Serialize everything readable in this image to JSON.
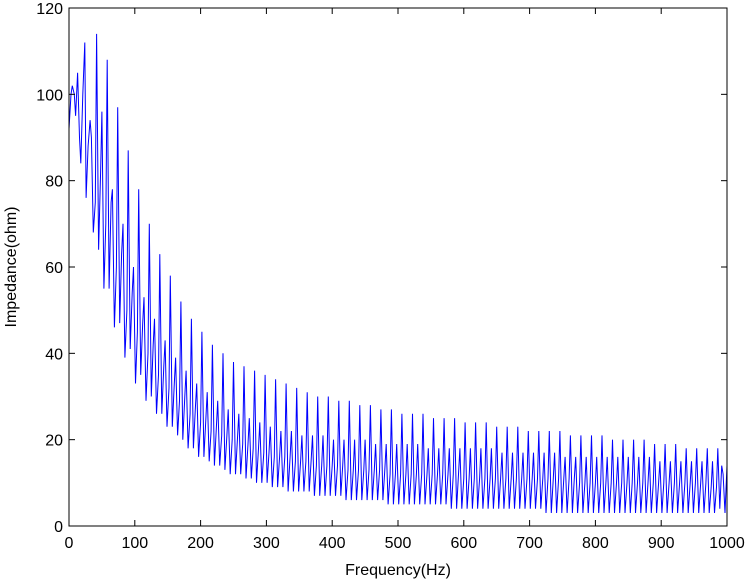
{
  "chart_data": {
    "type": "line",
    "title": "",
    "xlabel": "Frequency(Hz)",
    "ylabel": "Impedance(ohm)",
    "xlim": [
      0,
      1000
    ],
    "ylim": [
      0,
      120
    ],
    "xticks": [
      0,
      100,
      200,
      300,
      400,
      500,
      600,
      700,
      800,
      900,
      1000
    ],
    "yticks": [
      0,
      20,
      40,
      60,
      80,
      100,
      120
    ],
    "grid": false,
    "legend": "none",
    "line_color": "#0000ff",
    "series": [
      {
        "x": [
          0,
          3,
          5,
          8,
          10,
          13,
          16,
          18,
          21,
          24,
          26,
          29,
          32,
          34,
          37,
          40,
          42,
          45,
          48,
          50,
          53,
          56,
          58,
          61,
          64,
          66,
          69,
          72,
          74,
          77,
          80,
          82,
          85,
          88,
          90,
          93,
          96,
          98,
          101,
          104,
          106,
          109,
          112,
          114,
          117,
          120,
          122,
          125,
          128,
          130,
          133,
          136,
          138,
          141,
          144,
          146,
          149,
          152,
          154,
          157,
          160,
          162,
          165,
          168,
          170,
          173,
          176,
          178,
          181,
          184,
          186,
          189,
          192,
          194,
          197,
          200,
          202,
          205,
          208,
          210,
          213,
          216,
          218,
          221,
          224,
          226,
          229,
          232,
          234,
          237,
          240,
          242,
          245,
          248,
          250,
          253,
          256,
          258,
          261,
          264,
          266,
          269,
          272,
          274,
          277,
          280,
          282,
          285,
          288,
          290,
          293,
          296,
          298,
          301,
          304,
          306,
          309,
          312,
          314,
          317,
          320,
          322,
          325,
          328,
          330,
          333,
          336,
          338,
          341,
          344,
          346,
          349,
          352,
          354,
          357,
          360,
          362,
          365,
          368,
          370,
          373,
          376,
          378,
          381,
          384,
          386,
          389,
          392,
          394,
          397,
          400,
          402,
          405,
          408,
          410,
          413,
          416,
          418,
          421,
          424,
          426,
          429,
          432,
          434,
          437,
          440,
          442,
          445,
          448,
          450,
          453,
          456,
          458,
          461,
          464,
          466,
          469,
          472,
          474,
          477,
          480,
          482,
          485,
          488,
          490,
          493,
          496,
          498,
          501,
          504,
          506,
          509,
          512,
          514,
          517,
          520,
          522,
          525,
          528,
          530,
          533,
          536,
          538,
          541,
          544,
          546,
          549,
          552,
          554,
          557,
          560,
          562,
          565,
          568,
          570,
          573,
          576,
          578,
          581,
          584,
          586,
          589,
          592,
          594,
          597,
          600,
          602,
          605,
          608,
          610,
          613,
          616,
          618,
          621,
          624,
          626,
          629,
          632,
          634,
          637,
          640,
          642,
          645,
          648,
          650,
          653,
          656,
          658,
          661,
          664,
          666,
          669,
          672,
          674,
          677,
          680,
          682,
          685,
          688,
          690,
          693,
          696,
          698,
          701,
          704,
          706,
          709,
          712,
          714,
          717,
          720,
          722,
          725,
          728,
          730,
          733,
          736,
          738,
          741,
          744,
          746,
          749,
          752,
          754,
          757,
          760,
          762,
          765,
          768,
          770,
          773,
          776,
          778,
          781,
          784,
          786,
          789,
          792,
          794,
          797,
          800,
          802,
          805,
          808,
          810,
          813,
          816,
          818,
          821,
          824,
          826,
          829,
          832,
          834,
          837,
          840,
          842,
          845,
          848,
          850,
          853,
          856,
          858,
          861,
          864,
          866,
          869,
          872,
          874,
          877,
          880,
          882,
          885,
          888,
          890,
          893,
          896,
          898,
          901,
          904,
          906,
          909,
          912,
          914,
          917,
          920,
          922,
          925,
          928,
          930,
          933,
          936,
          938,
          941,
          944,
          946,
          949,
          952,
          954,
          957,
          960,
          962,
          965,
          968,
          970,
          973,
          976,
          978,
          981,
          984,
          986,
          989,
          992,
          994,
          997,
          1000
        ],
        "y": [
          92,
          100,
          102,
          100,
          95,
          105,
          90,
          84,
          100,
          112,
          76,
          88,
          94,
          90,
          68,
          75,
          114,
          64,
          82,
          96,
          55,
          70,
          108,
          55,
          75,
          78,
          46,
          60,
          97,
          47,
          63,
          70,
          39,
          50,
          87,
          41,
          54,
          60,
          33,
          45,
          78,
          35,
          47,
          53,
          29,
          40,
          70,
          30,
          42,
          48,
          26,
          35,
          63,
          26,
          37,
          43,
          23,
          32,
          58,
          23,
          33,
          39,
          21,
          29,
          52,
          20,
          30,
          36,
          18,
          26,
          48,
          18,
          27,
          33,
          16,
          24,
          45,
          16,
          25,
          31,
          15,
          22,
          42,
          14,
          23,
          29,
          14,
          21,
          40,
          13,
          21,
          27,
          12,
          20,
          38,
          12,
          20,
          26,
          12,
          19,
          37,
          11,
          19,
          25,
          11,
          18,
          36,
          10,
          18,
          24,
          10,
          17,
          35,
          10,
          17,
          23,
          9,
          16,
          34,
          9,
          16,
          22,
          9,
          16,
          33,
          8,
          16,
          22,
          8,
          15,
          32,
          8,
          15,
          21,
          8,
          15,
          31,
          8,
          15,
          21,
          7,
          14,
          30,
          7,
          14,
          21,
          7,
          14,
          30,
          7,
          14,
          20,
          7,
          14,
          29,
          7,
          14,
          20,
          6,
          13,
          29,
          6,
          13,
          20,
          6,
          13,
          28,
          6,
          13,
          20,
          6,
          13,
          28,
          6,
          13,
          19,
          6,
          13,
          27,
          6,
          13,
          19,
          5,
          12,
          27,
          5,
          12,
          19,
          5,
          12,
          26,
          5,
          12,
          19,
          5,
          12,
          26,
          5,
          12,
          19,
          5,
          12,
          26,
          5,
          12,
          18,
          5,
          12,
          25,
          5,
          12,
          18,
          5,
          12,
          25,
          5,
          12,
          18,
          4,
          12,
          25,
          4,
          12,
          18,
          4,
          11,
          24,
          4,
          11,
          18,
          4,
          11,
          24,
          4,
          11,
          18,
          4,
          11,
          24,
          4,
          11,
          18,
          4,
          11,
          23,
          4,
          11,
          17,
          4,
          11,
          23,
          4,
          11,
          17,
          4,
          11,
          23,
          4,
          11,
          17,
          4,
          11,
          22,
          4,
          11,
          17,
          4,
          11,
          22,
          4,
          11,
          17,
          3,
          11,
          22,
          3,
          11,
          17,
          3,
          11,
          22,
          3,
          11,
          16,
          3,
          11,
          21,
          3,
          11,
          16,
          3,
          10,
          21,
          3,
          10,
          16,
          3,
          10,
          21,
          3,
          10,
          16,
          3,
          10,
          21,
          3,
          10,
          16,
          3,
          10,
          20,
          3,
          10,
          16,
          3,
          10,
          20,
          3,
          10,
          16,
          3,
          10,
          20,
          3,
          10,
          16,
          3,
          10,
          20,
          3,
          10,
          16,
          3,
          10,
          19,
          3,
          10,
          15,
          3,
          10,
          19,
          3,
          10,
          15,
          3,
          10,
          19,
          3,
          10,
          15,
          3,
          10,
          18,
          3,
          10,
          15,
          3,
          10,
          18,
          3,
          10,
          15,
          3,
          10,
          18,
          3,
          9,
          15,
          3,
          9,
          18,
          4,
          14,
          12,
          3,
          14
        ]
      }
    ]
  }
}
